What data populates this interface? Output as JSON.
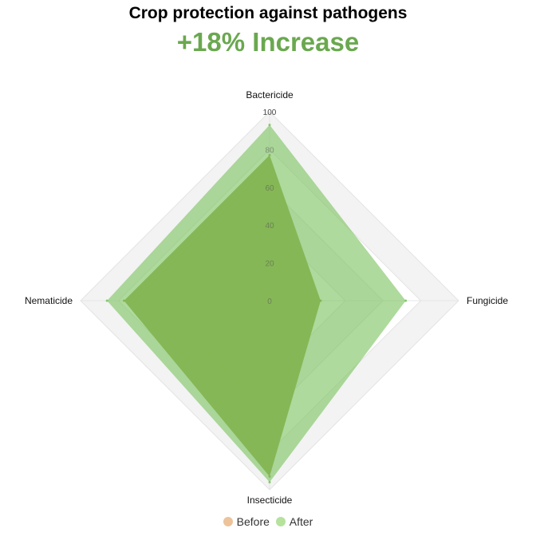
{
  "title": "Crop protection against pathogens",
  "subtitle": "+18% Increase",
  "colors": {
    "subtitle": "#6aa84f",
    "before": "#8e9f3a",
    "after": "#7cc361",
    "before_legend": "#edc39a",
    "after_legend": "#b6e29d",
    "grid_fill": "#f3f3f3",
    "grid_stroke": "#e4e4e4"
  },
  "chart_data": {
    "type": "radar",
    "axes": [
      "Bactericide",
      "Fungicide",
      "Insecticide",
      "Nematicide"
    ],
    "range": [
      0,
      100
    ],
    "ticks": [
      "0",
      "20",
      "40",
      "60",
      "80",
      "100"
    ],
    "tick_values": [
      0,
      20,
      40,
      60,
      80,
      100
    ],
    "series": [
      {
        "name": "Before",
        "values": [
          77,
          27,
          93,
          77
        ]
      },
      {
        "name": "After",
        "values": [
          93,
          72,
          96,
          86
        ]
      }
    ],
    "legend_position": "bottom"
  }
}
